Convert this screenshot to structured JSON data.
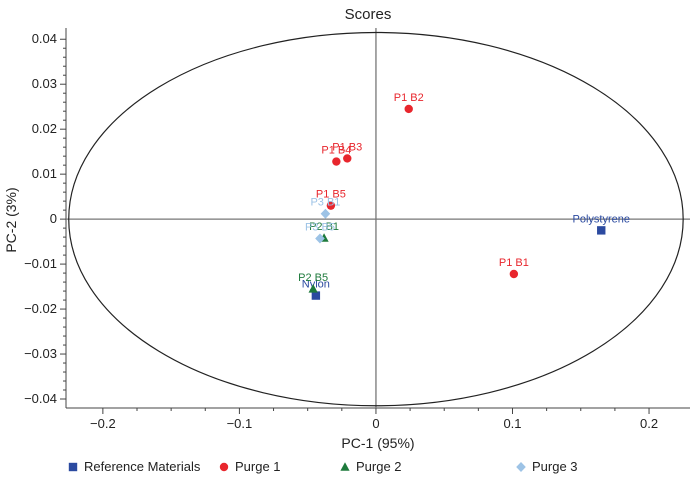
{
  "chart_data": {
    "type": "scatter",
    "title": "Scores",
    "xlabel": "PC-1 (95%)",
    "ylabel": "PC-2 (3%)",
    "xlim": [
      -0.227,
      0.23
    ],
    "ylim": [
      -0.042,
      0.0425
    ],
    "xticks": [
      -0.2,
      -0.1,
      0,
      0.1,
      0.2
    ],
    "xtick_labels": [
      "−0.2",
      "−0.1",
      "0",
      "0.1",
      "0.2"
    ],
    "yticks": [
      -0.04,
      -0.03,
      -0.02,
      -0.01,
      0,
      0.01,
      0.02,
      0.03,
      0.04
    ],
    "ytick_labels": [
      "−0.04",
      "−0.03",
      "−0.02",
      "−0.01",
      "0",
      "0.01",
      "0.02",
      "0.03",
      "0.04"
    ],
    "ellipse": {
      "cx": 0,
      "cy": 0,
      "rx": 0.225,
      "ry": 0.0415
    },
    "colors": {
      "reference": "#2b4aa0",
      "purge1": "#e8262d",
      "purge2": "#1e7a3c",
      "purge3": "#9dc3e6",
      "axes": "#444444"
    },
    "series": [
      {
        "name": "Reference Materials",
        "marker": "square",
        "color_key": "reference",
        "points": [
          {
            "label": "Polystyrene",
            "x": 0.165,
            "y": -0.0025
          },
          {
            "label": "Nylon",
            "x": -0.044,
            "y": -0.017
          }
        ]
      },
      {
        "name": "Purge 1",
        "marker": "circle",
        "color_key": "purge1",
        "points": [
          {
            "label": "P1 B2",
            "x": 0.024,
            "y": 0.0245
          },
          {
            "label": "P1 B3",
            "x": -0.021,
            "y": 0.0135
          },
          {
            "label": "P1 B4",
            "x": -0.029,
            "y": 0.0128
          },
          {
            "label": "P1 B5",
            "x": -0.033,
            "y": 0.003
          },
          {
            "label": "P1 B1",
            "x": 0.101,
            "y": -0.0122
          }
        ]
      },
      {
        "name": "Purge 2",
        "marker": "triangle",
        "color_key": "purge2",
        "points": [
          {
            "label": "P2 B1",
            "x": -0.038,
            "y": -0.0042
          },
          {
            "label": "P2 B5",
            "x": -0.046,
            "y": -0.0155
          }
        ]
      },
      {
        "name": "Purge 3",
        "marker": "diamond",
        "color_key": "purge3",
        "points": [
          {
            "label": "P3 B1",
            "x": -0.037,
            "y": 0.0012
          },
          {
            "label": "P3 B5",
            "x": -0.041,
            "y": -0.0043
          }
        ]
      }
    ],
    "legend": [
      "Reference Materials",
      "Purge 1",
      "Purge 2",
      "Purge 3"
    ],
    "legend_position": "bottom"
  }
}
